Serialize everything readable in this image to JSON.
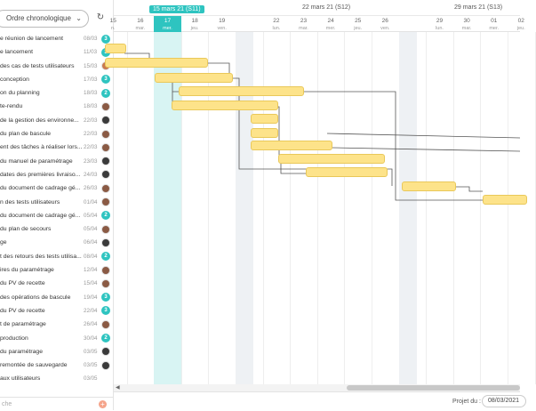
{
  "sidebar": {
    "sort_label": "Ordre chronologique",
    "sort_chevron": "chevron-down-icon",
    "search_placeholder": "che",
    "tasks": [
      {
        "name": "e réunion de lancement",
        "date": "08/03",
        "badge": "3",
        "badge_type": "teal"
      },
      {
        "name": "e lancement",
        "date": "11/03",
        "badge": "3",
        "badge_type": "teal"
      },
      {
        "name": "des cas de tests utilisateurs",
        "date": "15/03",
        "badge": "",
        "badge_type": "face3"
      },
      {
        "name": "conception",
        "date": "17/03",
        "badge": "3",
        "badge_type": "teal"
      },
      {
        "name": "on du planning",
        "date": "18/03",
        "badge": "2",
        "badge_type": "teal"
      },
      {
        "name": "te-rendu",
        "date": "18/03",
        "badge": "",
        "badge_type": "face"
      },
      {
        "name": "de la gestion des environne...",
        "date": "22/03",
        "badge": "",
        "badge_type": "face2"
      },
      {
        "name": "du plan de bascule",
        "date": "22/03",
        "badge": "",
        "badge_type": "face"
      },
      {
        "name": "ent des tâches à réaliser lors...",
        "date": "22/03",
        "badge": "",
        "badge_type": "face"
      },
      {
        "name": "du manuel de paramétrage",
        "date": "23/03",
        "badge": "",
        "badge_type": "face2"
      },
      {
        "name": "dates des premières livraiso...",
        "date": "24/03",
        "badge": "",
        "badge_type": "face2"
      },
      {
        "name": "du document de cadrage gé...",
        "date": "26/03",
        "badge": "",
        "badge_type": "face"
      },
      {
        "name": "n des tests utilisateurs",
        "date": "01/04",
        "badge": "",
        "badge_type": "face"
      },
      {
        "name": "du document de cadrage gé...",
        "date": "05/04",
        "badge": "2",
        "badge_type": "teal"
      },
      {
        "name": "du plan de secours",
        "date": "05/04",
        "badge": "",
        "badge_type": "face"
      },
      {
        "name": "ge",
        "date": "06/04",
        "badge": "",
        "badge_type": "face2"
      },
      {
        "name": "t des retours des tests utilisa...",
        "date": "08/04",
        "badge": "2",
        "badge_type": "teal"
      },
      {
        "name": "ires du paramétrage",
        "date": "12/04",
        "badge": "",
        "badge_type": "face"
      },
      {
        "name": "du PV de recette",
        "date": "15/04",
        "badge": "",
        "badge_type": "face"
      },
      {
        "name": "des opérations de bascule",
        "date": "19/04",
        "badge": "3",
        "badge_type": "teal"
      },
      {
        "name": "du PV de recette",
        "date": "22/04",
        "badge": "3",
        "badge_type": "teal"
      },
      {
        "name": "t de paramétrage",
        "date": "26/04",
        "badge": "",
        "badge_type": "face"
      },
      {
        "name": "production",
        "date": "30/04",
        "badge": "2",
        "badge_type": "teal"
      },
      {
        "name": "du paramétrage",
        "date": "03/05",
        "badge": "",
        "badge_type": "face2"
      },
      {
        "name": "remontée de sauvegarde",
        "date": "03/05",
        "badge": "",
        "badge_type": "face2"
      },
      {
        "name": "aux utilisateurs",
        "date": "03/05",
        "badge": "",
        "badge_type": ""
      }
    ]
  },
  "timeline": {
    "weeks": [
      {
        "label": "15 mars 21 (S11)",
        "current": true
      },
      {
        "label": "22 mars 21 (S12)",
        "current": false
      },
      {
        "label": "29 mars 21 (S13)",
        "current": false
      }
    ],
    "days": [
      {
        "num": "15",
        "wd": "n."
      },
      {
        "num": "16",
        "wd": "mar."
      },
      {
        "num": "17",
        "wd": "mer.",
        "current": true
      },
      {
        "num": "18",
        "wd": "jeu."
      },
      {
        "num": "19",
        "wd": "ven."
      },
      {
        "num": "",
        "wd": ""
      },
      {
        "num": "22",
        "wd": "lun."
      },
      {
        "num": "23",
        "wd": "mar."
      },
      {
        "num": "24",
        "wd": "mer."
      },
      {
        "num": "25",
        "wd": "jeu."
      },
      {
        "num": "26",
        "wd": "ven."
      },
      {
        "num": "",
        "wd": ""
      },
      {
        "num": "29",
        "wd": "lun."
      },
      {
        "num": "30",
        "wd": "mar."
      },
      {
        "num": "01",
        "wd": "mer."
      },
      {
        "num": "02",
        "wd": "jeu."
      }
    ]
  },
  "footer": {
    "project_label": "Projet du :",
    "project_date": "08/03/2021"
  },
  "colors": {
    "accent": "#2ec4c0",
    "bar": "#fde38a",
    "bar_border": "#e9c85a"
  }
}
